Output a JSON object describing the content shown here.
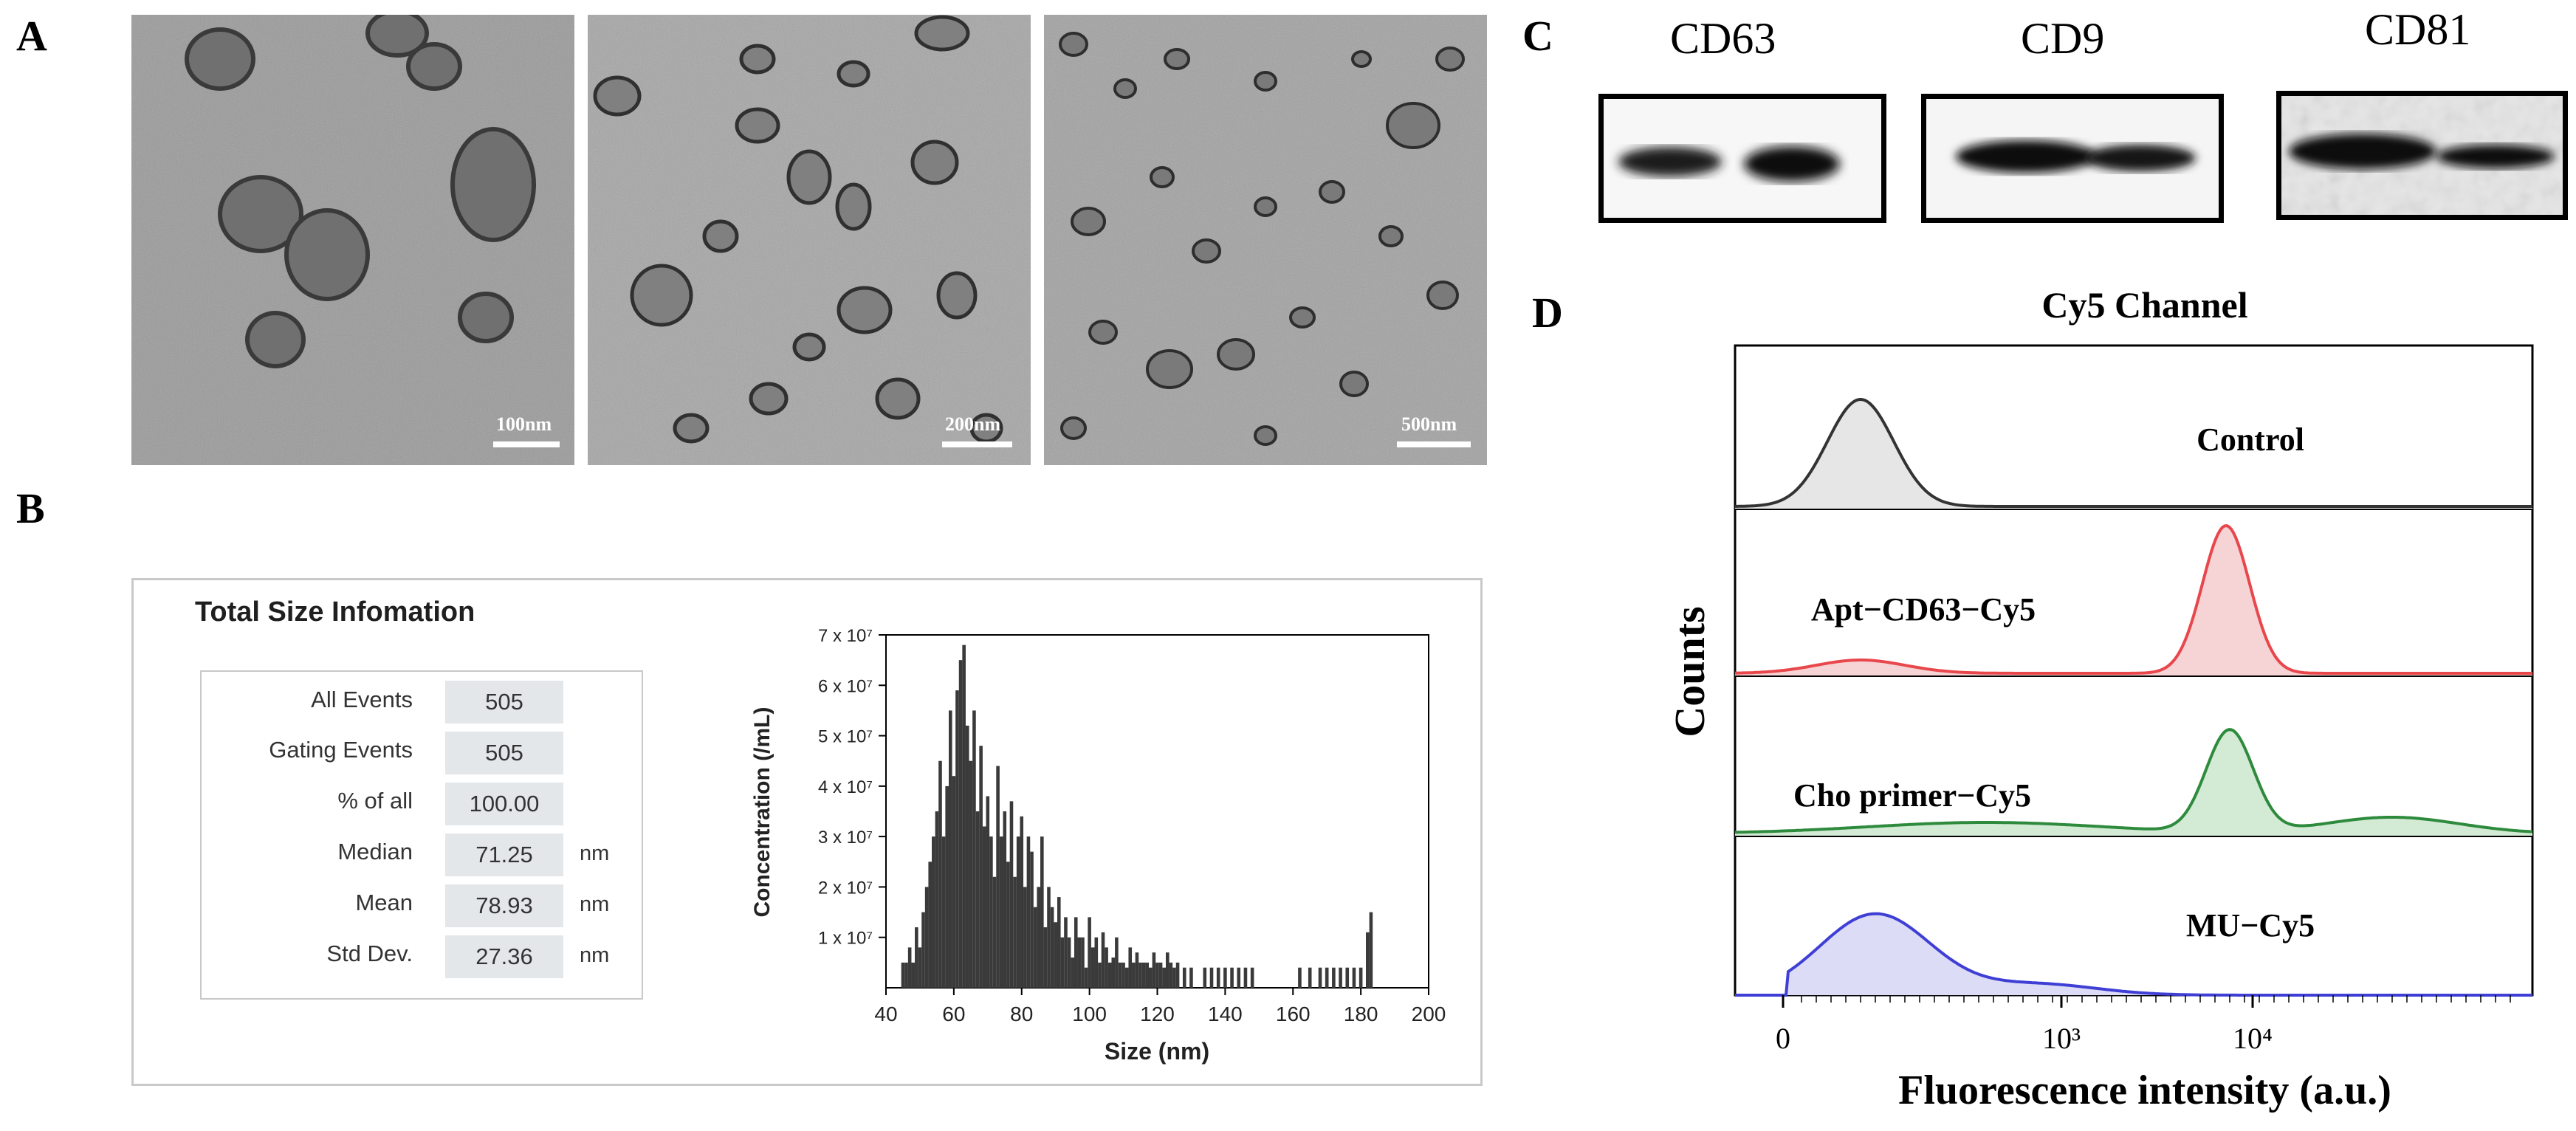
{
  "panels": {
    "a": "A",
    "b": "B",
    "c": "C",
    "d": "D"
  },
  "tem": {
    "scale_bars": [
      "100nm",
      "200nm",
      "500nm"
    ]
  },
  "western_blot": {
    "markers": [
      "CD63",
      "CD9",
      "CD81"
    ]
  },
  "nta": {
    "title": "Total Size Infomation",
    "stats": [
      {
        "label": "All  Events",
        "value": "505",
        "unit": ""
      },
      {
        "label": "Gating Events",
        "value": "505",
        "unit": ""
      },
      {
        "label": "% of all",
        "value": "100.00",
        "unit": ""
      },
      {
        "label": "Median",
        "value": "71.25",
        "unit": "nm"
      },
      {
        "label": "Mean",
        "value": "78.93",
        "unit": "nm"
      },
      {
        "label": "Std Dev.",
        "value": "27.36",
        "unit": "nm"
      }
    ]
  },
  "chart_data": [
    {
      "type": "bar",
      "xlabel": "Size (nm)",
      "ylabel": "Concentration (/mL)",
      "xlim": [
        40,
        200
      ],
      "ylim": [
        0,
        7
      ],
      "x_ticks": [
        "40",
        "60",
        "80",
        "100",
        "120",
        "140",
        "160",
        "180",
        "200"
      ],
      "y_ticks": [
        {
          "value": 1,
          "label": "1 x 10⁷"
        },
        {
          "value": 2,
          "label": "2 x 10⁷"
        },
        {
          "value": 3,
          "label": "3 x 10⁷"
        },
        {
          "value": 4,
          "label": "4 x 10⁷"
        },
        {
          "value": 5,
          "label": "5 x 10⁷"
        },
        {
          "value": 6,
          "label": "6 x 10⁷"
        },
        {
          "value": 7,
          "label": "7 x 10⁷"
        }
      ],
      "bin_width": 1,
      "x": [
        45,
        46,
        47,
        48,
        49,
        50,
        51,
        52,
        53,
        54,
        55,
        56,
        57,
        58,
        59,
        60,
        61,
        62,
        63,
        64,
        65,
        66,
        67,
        68,
        69,
        70,
        71,
        72,
        73,
        74,
        75,
        76,
        77,
        78,
        79,
        80,
        81,
        82,
        83,
        84,
        85,
        86,
        87,
        88,
        89,
        90,
        91,
        92,
        93,
        94,
        95,
        96,
        97,
        98,
        99,
        100,
        101,
        102,
        103,
        104,
        105,
        106,
        107,
        108,
        109,
        110,
        111,
        112,
        113,
        114,
        115,
        116,
        117,
        118,
        119,
        120,
        121,
        122,
        123,
        124,
        125,
        126,
        128,
        130,
        134,
        136,
        138,
        140,
        142,
        144,
        146,
        148,
        162,
        165,
        168,
        170,
        172,
        174,
        176,
        178,
        180,
        182,
        183
      ],
      "values": [
        0.5,
        0.5,
        0.8,
        0.5,
        1.2,
        0.8,
        1.5,
        2.0,
        2.5,
        3.0,
        3.5,
        4.5,
        3.0,
        4.0,
        5.5,
        4.2,
        5.9,
        6.5,
        6.8,
        5.2,
        4.5,
        5.5,
        3.5,
        4.8,
        3.2,
        3.8,
        3.0,
        2.2,
        4.4,
        3.0,
        3.5,
        2.5,
        3.7,
        2.2,
        3.0,
        3.4,
        2.0,
        3.0,
        2.7,
        1.6,
        2.0,
        3.0,
        1.2,
        2.0,
        1.6,
        1.3,
        1.8,
        1.0,
        1.4,
        1.0,
        0.6,
        1.4,
        1.0,
        1.0,
        0.4,
        1.4,
        0.8,
        1.0,
        0.5,
        1.1,
        0.8,
        0.5,
        0.6,
        1.0,
        0.5,
        0.5,
        0.4,
        0.8,
        0.5,
        0.7,
        0.5,
        0.5,
        0.5,
        0.4,
        0.7,
        0.5,
        0.5,
        0.4,
        0.7,
        0.5,
        0.4,
        0.5,
        0.4,
        0.4,
        0.4,
        0.4,
        0.4,
        0.4,
        0.4,
        0.4,
        0.4,
        0.4,
        0.4,
        0.4,
        0.4,
        0.4,
        0.4,
        0.4,
        0.4,
        0.4,
        0.4,
        1.1,
        1.5
      ]
    },
    {
      "type": "area",
      "title": "Cy5 Channel",
      "xlabel": "Fluorescence intensity (a.u.)",
      "ylabel": "Counts",
      "x_ticks": [
        "0",
        "10³",
        "10⁴"
      ],
      "series": [
        {
          "name": "Control",
          "color": "#333333",
          "fill": "#e6e6e6"
        },
        {
          "name": "Apt−CD63−Cy5",
          "color": "#e8474c",
          "fill": "#f6d4d5"
        },
        {
          "name": "Cho primer−Cy5",
          "color": "#2e8b3d",
          "fill": "#d3ead5"
        },
        {
          "name": "MU−Cy5",
          "color": "#3f3fd6",
          "fill": "#dcdcf6"
        }
      ]
    }
  ]
}
